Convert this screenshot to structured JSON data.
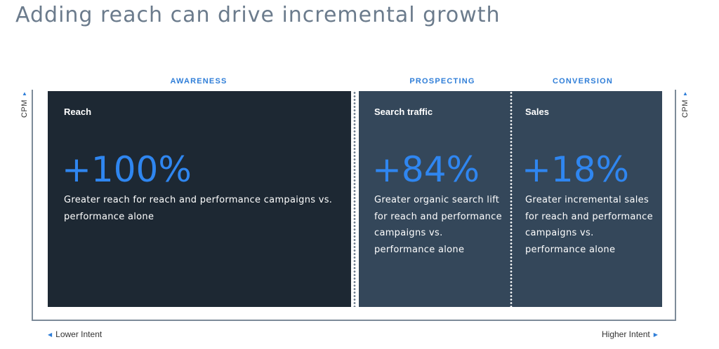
{
  "title": "Adding reach can drive incremental growth",
  "phases": {
    "awareness": "AWARENESS",
    "prospecting": "PROSPECTING",
    "conversion": "CONVERSION"
  },
  "axis": {
    "y_label": "CPM",
    "x_left": "Lower Intent",
    "x_right": "Higher Intent"
  },
  "panels": [
    {
      "heading": "Reach",
      "stat": "+100%",
      "description": "Greater reach for reach and performance campaigns vs. performance alone"
    },
    {
      "heading": "Search traffic",
      "stat": "+84%",
      "description": "Greater organic search lift for reach and performance campaigns vs. performance alone"
    },
    {
      "heading": "Sales",
      "stat": "+18%",
      "description": "Greater incremental sales for reach and performance campaigns vs. performance alone"
    }
  ],
  "colors": {
    "accent": "#2f86f0",
    "panel_dark": "#1d2833",
    "panel_slate": "#34475a",
    "title": "#6b7b8c"
  },
  "icons": {
    "up": "triangle-up-icon",
    "left": "triangle-left-icon",
    "right": "triangle-right-icon"
  }
}
